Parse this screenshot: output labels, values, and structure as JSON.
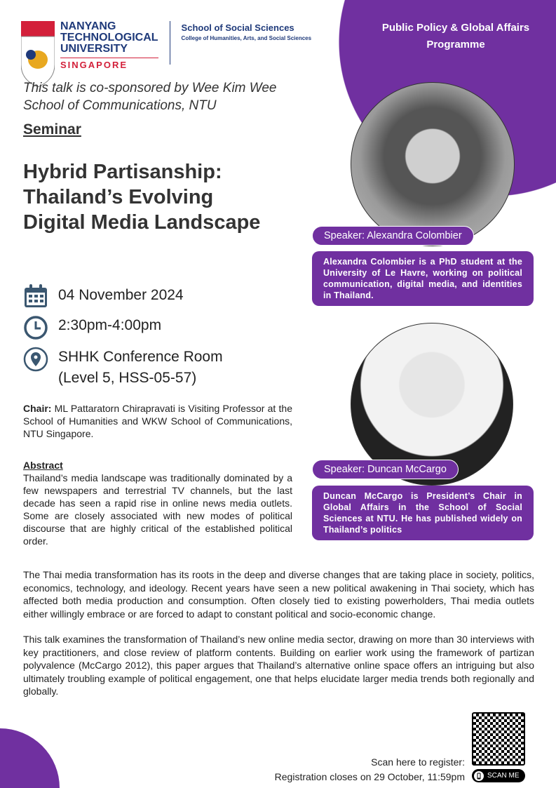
{
  "colors": {
    "accent": "#7030a0",
    "icon": "#3b5770"
  },
  "logo": {
    "ntu_lines": [
      "NANYANG",
      "TECHNOLOGICAL",
      "UNIVERSITY"
    ],
    "singapore": "SINGAPORE",
    "school": "School of Social Sciences",
    "college": "College of Humanities, Arts, and Social Sciences"
  },
  "programme": "Public Policy & Global Affairs Programme",
  "sponsor": "This talk is co-sponsored by Wee Kim Wee School of Communications, NTU",
  "seminar": "Seminar",
  "title": [
    "Hybrid Partisanship:",
    "Thailand’s Evolving",
    "Digital Media Landscape"
  ],
  "event": {
    "date": "04 November 2024",
    "time": "2:30pm-4:00pm",
    "venue": "SHHK Conference Room",
    "venue_detail": "(Level 5, HSS-05-57)"
  },
  "chair": {
    "label": "Chair:",
    "text": " ML Pattaratorn Chirapravati is Visiting Professor at the School of Humanities and WKW School of Communications, NTU Singapore."
  },
  "abstract": {
    "label": "Abstract",
    "text": "Thailand’s media landscape was traditionally dominated by a few newspapers and terrestrial TV channels, but the last decade has seen a rapid rise in online news media outlets. Some are closely associated with new modes of political discourse that are highly critical of the established political order."
  },
  "speakers": [
    {
      "label": "Speaker: Alexandra Colombier",
      "bio": "Alexandra Colombier is a PhD student at the University of Le Havre, working on political communication, digital media, and identities in Thailand."
    },
    {
      "label": "Speaker: Duncan McCargo",
      "bio": "Duncan McCargo is President’s Chair in Global Affairs in the School of Social Sciences at NTU. He has published widely on Thailand’s politics"
    }
  ],
  "body": [
    "The Thai media transformation has its roots in the deep and diverse changes that are taking place in society, politics, economics, technology, and ideology. Recent years have seen a new political awakening in Thai society, which has affected both media production and consumption. Often closely tied to existing powerholders, Thai media outlets either willingly embrace or are forced to adapt to constant political and socio-economic change.",
    "This talk examines the transformation of Thailand’s new online media sector, drawing on more than 30 interviews with key practitioners, and close review of platform contents. Building on earlier work using the framework of partizan polyvalence (McCargo 2012), this paper argues that Thailand’s alternative online space offers an intriguing but also ultimately troubling example of political engagement, one that helps elucidate larger media trends both regionally and globally."
  ],
  "registration": {
    "scan": "Scan here to register:",
    "closes": "Registration closes on 29 October, 11:59pm",
    "scan_me": "SCAN ME"
  }
}
